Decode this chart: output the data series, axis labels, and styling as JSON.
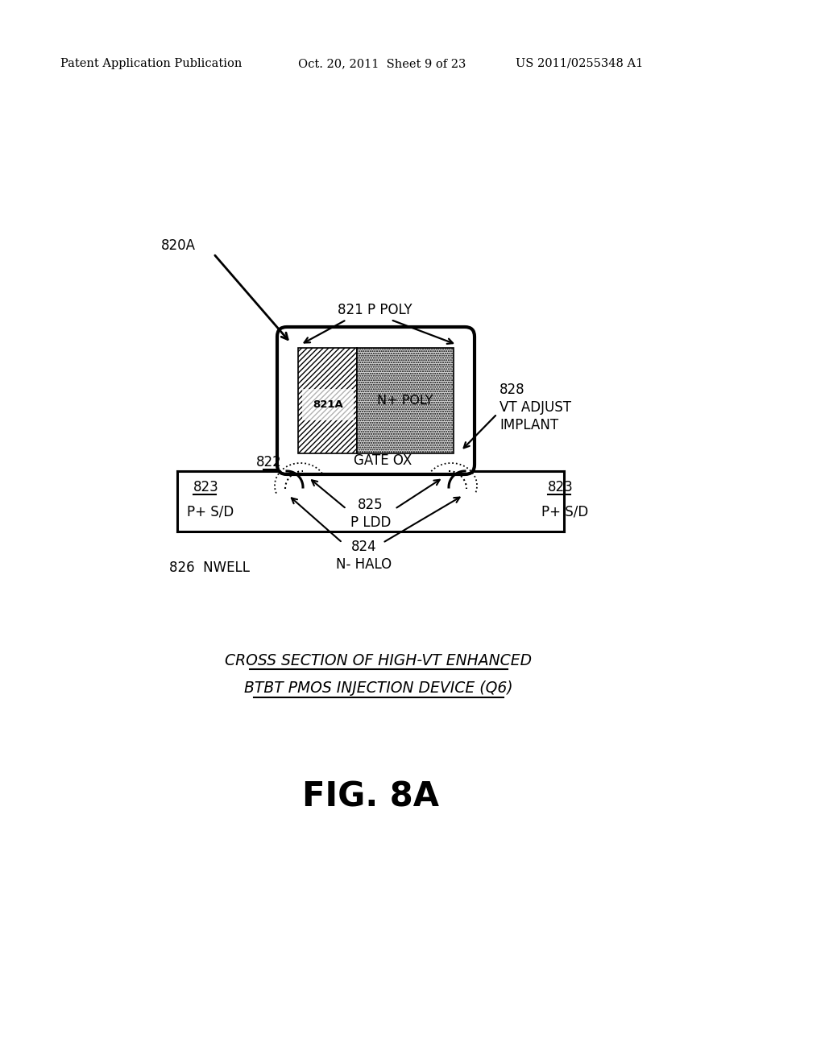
{
  "header_left": "Patent Application Publication",
  "header_mid": "Oct. 20, 2011  Sheet 9 of 23",
  "header_right": "US 2011/0255348 A1",
  "fig_label": "FIG. 8A",
  "title_line1": "CROSS SECTION OF HIGH-VT ENHANCED",
  "title_line2": "BTBT PMOS INJECTION DEVICE (Q6)",
  "label_820A": "820A",
  "label_821": "821 P POLY",
  "label_821A": "821A",
  "label_nplus_poly": "N+ POLY",
  "label_822": "822",
  "label_gate_ox": "GATE OX",
  "label_823_left": "823",
  "label_823_right": "823",
  "label_psd_left": "P+ S/D",
  "label_psd_right": "P+ S/D",
  "label_825": "825",
  "label_pldd": "P LDD",
  "label_824": "824",
  "label_nhalo": "N- HALO",
  "label_826": "826  NWELL",
  "label_828": "828",
  "label_vt_adjust": "VT ADJUST",
  "label_implant": "IMPLANT",
  "bg_color": "#ffffff",
  "line_color": "#000000"
}
